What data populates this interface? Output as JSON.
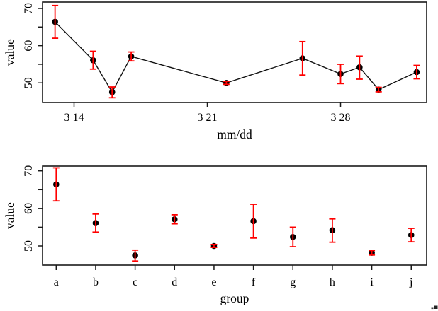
{
  "colors": {
    "background": "#ffffff",
    "axis": "#1a1a1a",
    "line": "#111111",
    "marker": "#000000",
    "error_bar": "#ff0000"
  },
  "chart_data": [
    {
      "type": "line",
      "panel": "top",
      "title": "",
      "xlabel": "mm/dd",
      "ylabel": "value",
      "x_tick_labels": [
        "3 14",
        "3 21",
        "3 28"
      ],
      "x_tick_days": [
        0,
        7,
        14
      ],
      "points_x_days": [
        -1,
        1,
        2,
        3,
        8,
        12,
        14,
        15,
        16,
        18
      ],
      "point_dates_mm_dd": [
        "3/13",
        "3/15",
        "3/16",
        "3/17",
        "3/22",
        "3/26",
        "3/28",
        "3/29",
        "3/30",
        "4/1"
      ],
      "values": [
        66.4,
        56.1,
        47.5,
        57.1,
        50.0,
        56.6,
        52.4,
        54.2,
        48.2,
        52.9
      ],
      "upper": [
        70.8,
        58.5,
        48.9,
        58.3,
        50.4,
        61.1,
        55.0,
        57.2,
        48.8,
        54.7
      ],
      "lower": [
        62.0,
        53.7,
        46.0,
        55.9,
        49.6,
        52.1,
        49.8,
        51.0,
        47.6,
        51.1
      ],
      "y_ticks_major": [
        50,
        60,
        70
      ],
      "y_ticks_minor": [
        55,
        65
      ],
      "ylim": [
        44.7,
        71.7
      ],
      "grid": false,
      "legend": false,
      "connect": true,
      "error_bars": true
    },
    {
      "type": "scatter",
      "panel": "bottom",
      "title": "",
      "xlabel": "group",
      "ylabel": "value",
      "categories": [
        "a",
        "b",
        "c",
        "d",
        "e",
        "f",
        "g",
        "h",
        "i",
        "j"
      ],
      "values": [
        66.4,
        56.1,
        47.5,
        57.1,
        50.0,
        56.6,
        52.4,
        54.2,
        48.2,
        52.9
      ],
      "upper": [
        70.8,
        58.5,
        48.9,
        58.3,
        50.4,
        61.1,
        55.0,
        57.2,
        48.8,
        54.7
      ],
      "lower": [
        62.0,
        53.7,
        46.0,
        55.9,
        49.6,
        52.1,
        49.8,
        51.0,
        47.6,
        51.1
      ],
      "y_ticks_major": [
        50,
        60,
        70
      ],
      "y_ticks_minor": [
        55,
        65
      ],
      "ylim": [
        44.9,
        71.3
      ],
      "grid": false,
      "legend": false,
      "connect": false,
      "error_bars": true
    }
  ]
}
